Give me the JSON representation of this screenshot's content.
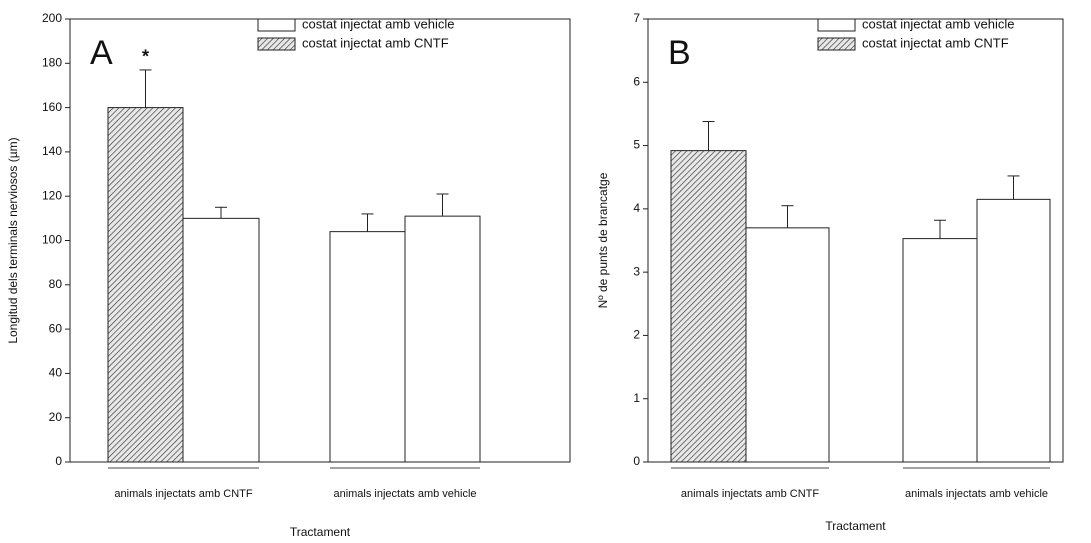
{
  "chart_data": [
    {
      "type": "bar",
      "panel": "A",
      "y_label": "Longitud dels terminals nerviosos (µm)",
      "x_label": "Tractament",
      "categories": [
        "animals injectats amb CNTF",
        "animals injectats amb vehicle"
      ],
      "series": [
        {
          "values": [
            160,
            104
          ],
          "errors": [
            17,
            8
          ],
          "patterns": [
            "hatch",
            "none"
          ]
        },
        {
          "values": [
            110,
            111
          ],
          "errors": [
            5,
            10
          ],
          "patterns": [
            "none",
            "none"
          ]
        }
      ],
      "legend": [
        {
          "name": "costat injectat amb vehicle",
          "pattern": "none"
        },
        {
          "name": "costat injectat amb CNTF",
          "pattern": "hatch"
        }
      ],
      "annotation": "*",
      "ylim": [
        0,
        200
      ],
      "yticks": [
        0,
        20,
        40,
        60,
        80,
        100,
        120,
        140,
        160,
        180,
        200
      ]
    },
    {
      "type": "bar",
      "panel": "B",
      "y_label": "Nº de punts de brancatge",
      "x_label": "Tractament",
      "categories": [
        "animals injectats amb CNTF",
        "animals injectats amb vehicle"
      ],
      "series": [
        {
          "values": [
            4.92,
            3.53
          ],
          "errors": [
            0.46,
            0.29
          ],
          "patterns": [
            "hatch",
            "none"
          ]
        },
        {
          "values": [
            3.7,
            4.15
          ],
          "errors": [
            0.35,
            0.37
          ],
          "patterns": [
            "none",
            "none"
          ]
        }
      ],
      "legend": [
        {
          "name": "costat injectat amb vehicle",
          "pattern": "none"
        },
        {
          "name": "costat injectat amb CNTF",
          "pattern": "hatch"
        }
      ],
      "ylim": [
        0,
        7
      ],
      "yticks": [
        0,
        1,
        2,
        3,
        4,
        5,
        6,
        7
      ]
    }
  ]
}
